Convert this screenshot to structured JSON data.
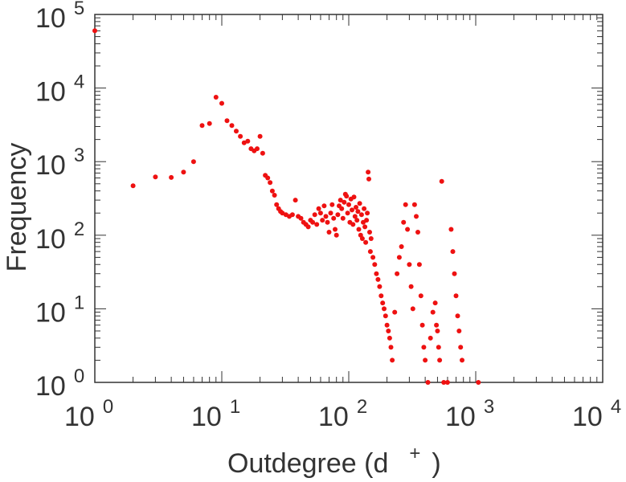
{
  "chart_data": {
    "type": "scatter",
    "xlabel": "Outdegree (d",
    "xlabel_sup": "+",
    "xlabel_close": ")",
    "ylabel": "Frequency",
    "x_scale": "log",
    "y_scale": "log",
    "xlim": [
      1,
      10000
    ],
    "ylim": [
      1,
      100000
    ],
    "x_ticks": [
      {
        "base": "10",
        "exp": "0",
        "value": 1
      },
      {
        "base": "10",
        "exp": "1",
        "value": 10
      },
      {
        "base": "10",
        "exp": "2",
        "value": 100
      },
      {
        "base": "10",
        "exp": "3",
        "value": 1000
      },
      {
        "base": "10",
        "exp": "4",
        "value": 10000
      }
    ],
    "y_ticks": [
      {
        "base": "10",
        "exp": "0",
        "value": 1
      },
      {
        "base": "10",
        "exp": "1",
        "value": 10
      },
      {
        "base": "10",
        "exp": "2",
        "value": 100
      },
      {
        "base": "10",
        "exp": "3",
        "value": 1000
      },
      {
        "base": "10",
        "exp": "4",
        "value": 10000
      },
      {
        "base": "10",
        "exp": "5",
        "value": 100000
      }
    ],
    "grid": false,
    "marker_color": "#ee1111",
    "points": [
      [
        1,
        60000
      ],
      [
        2,
        470
      ],
      [
        3,
        620
      ],
      [
        4,
        610
      ],
      [
        5,
        720
      ],
      [
        6,
        1000
      ],
      [
        7,
        3100
      ],
      [
        8,
        3300
      ],
      [
        9,
        7500
      ],
      [
        10,
        6200
      ],
      [
        11,
        3600
      ],
      [
        12,
        3100
      ],
      [
        13,
        2600
      ],
      [
        14,
        2200
      ],
      [
        15,
        1800
      ],
      [
        16,
        1900
      ],
      [
        17,
        1500
      ],
      [
        18,
        1400
      ],
      [
        19,
        1500
      ],
      [
        20,
        2200
      ],
      [
        21,
        1300
      ],
      [
        22,
        650
      ],
      [
        23,
        600
      ],
      [
        24,
        520
      ],
      [
        25,
        400
      ],
      [
        26,
        350
      ],
      [
        27,
        260
      ],
      [
        28,
        230
      ],
      [
        29,
        210
      ],
      [
        30,
        200
      ],
      [
        32,
        190
      ],
      [
        34,
        180
      ],
      [
        36,
        190
      ],
      [
        38,
        300
      ],
      [
        40,
        180
      ],
      [
        42,
        170
      ],
      [
        44,
        150
      ],
      [
        46,
        140
      ],
      [
        48,
        130
      ],
      [
        50,
        160
      ],
      [
        52,
        150
      ],
      [
        54,
        190
      ],
      [
        56,
        140
      ],
      [
        58,
        230
      ],
      [
        60,
        200
      ],
      [
        62,
        160
      ],
      [
        64,
        250
      ],
      [
        66,
        180
      ],
      [
        68,
        150
      ],
      [
        70,
        110
      ],
      [
        72,
        200
      ],
      [
        74,
        260
      ],
      [
        76,
        170
      ],
      [
        78,
        120
      ],
      [
        80,
        100
      ],
      [
        82,
        190
      ],
      [
        84,
        250
      ],
      [
        86,
        300
      ],
      [
        88,
        230
      ],
      [
        90,
        170
      ],
      [
        92,
        280
      ],
      [
        94,
        360
      ],
      [
        96,
        340
      ],
      [
        98,
        200
      ],
      [
        100,
        260
      ],
      [
        102,
        150
      ],
      [
        104,
        310
      ],
      [
        106,
        220
      ],
      [
        108,
        140
      ],
      [
        110,
        330
      ],
      [
        112,
        180
      ],
      [
        114,
        240
      ],
      [
        116,
        160
      ],
      [
        118,
        210
      ],
      [
        120,
        120
      ],
      [
        122,
        270
      ],
      [
        124,
        100
      ],
      [
        126,
        190
      ],
      [
        128,
        90
      ],
      [
        130,
        150
      ],
      [
        132,
        230
      ],
      [
        134,
        130
      ],
      [
        136,
        80
      ],
      [
        138,
        160
      ],
      [
        140,
        200
      ],
      [
        142,
        720
      ],
      [
        144,
        580
      ],
      [
        146,
        110
      ],
      [
        148,
        60
      ],
      [
        150,
        90
      ],
      [
        155,
        50
      ],
      [
        160,
        40
      ],
      [
        165,
        30
      ],
      [
        170,
        25
      ],
      [
        175,
        20
      ],
      [
        180,
        15
      ],
      [
        185,
        12
      ],
      [
        190,
        10
      ],
      [
        195,
        8
      ],
      [
        200,
        6
      ],
      [
        205,
        5
      ],
      [
        210,
        4
      ],
      [
        215,
        3
      ],
      [
        220,
        2
      ],
      [
        230,
        9
      ],
      [
        240,
        30
      ],
      [
        250,
        50
      ],
      [
        260,
        70
      ],
      [
        270,
        150
      ],
      [
        280,
        260
      ],
      [
        290,
        120
      ],
      [
        300,
        40
      ],
      [
        310,
        20
      ],
      [
        320,
        10
      ],
      [
        330,
        260
      ],
      [
        340,
        180
      ],
      [
        350,
        110
      ],
      [
        360,
        40
      ],
      [
        370,
        15
      ],
      [
        380,
        6
      ],
      [
        390,
        3
      ],
      [
        400,
        2
      ],
      [
        420,
        1
      ],
      [
        440,
        4
      ],
      [
        460,
        9
      ],
      [
        480,
        12
      ],
      [
        490,
        6
      ],
      [
        500,
        5
      ],
      [
        510,
        3
      ],
      [
        520,
        2
      ],
      [
        540,
        540
      ],
      [
        560,
        1
      ],
      [
        600,
        1
      ],
      [
        640,
        120
      ],
      [
        660,
        60
      ],
      [
        680,
        30
      ],
      [
        700,
        15
      ],
      [
        720,
        8
      ],
      [
        740,
        5
      ],
      [
        760,
        3
      ],
      [
        780,
        2
      ],
      [
        1050,
        1
      ]
    ]
  }
}
